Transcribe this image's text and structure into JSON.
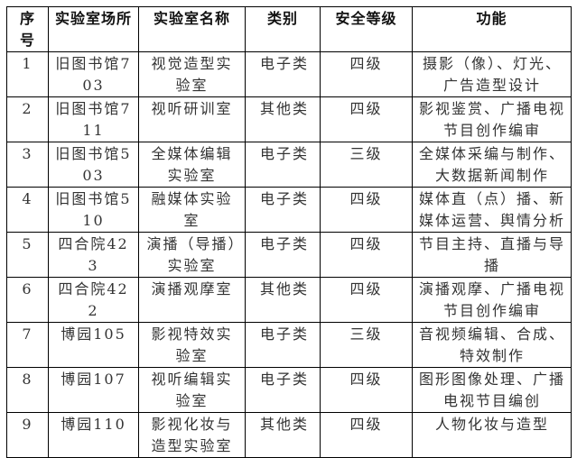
{
  "table": {
    "headers": [
      "序号",
      "实验室场所",
      "实验室名称",
      "类别",
      "安全等级",
      "功能"
    ],
    "rows": [
      [
        "1",
        "旧图书馆703",
        "视觉造型实验室",
        "电子类",
        "四级",
        "摄影（像）、灯光、广告造型设计"
      ],
      [
        "2",
        "旧图书馆711",
        "视听研训室",
        "其他类",
        "四级",
        "影视鉴赏、广播电视节目创作编审"
      ],
      [
        "3",
        "旧图书馆503",
        "全媒体编辑实验室",
        "电子类",
        "三级",
        "全媒体采编与制作、大数据新闻制作"
      ],
      [
        "4",
        "旧图书馆510",
        "融媒体实验室",
        "电子类",
        "四级",
        "媒体直（点）播、新媒体运营、舆情分析"
      ],
      [
        "5",
        "四合院423",
        "演播（导播）实验室",
        "电子类",
        "四级",
        "节目主持、直播与导播"
      ],
      [
        "6",
        "四合院422",
        "演播观摩室",
        "其他类",
        "四级",
        "演播观摩、广播电视节目创作编审"
      ],
      [
        "7",
        "博园105",
        "影视特效实验室",
        "电子类",
        "三级",
        "音视频编辑、合成、特效制作"
      ],
      [
        "8",
        "博园107",
        "视听编辑实验室",
        "电子类",
        "四级",
        "图形图像处理、广播电视节目编创"
      ],
      [
        "9",
        "博园110",
        "影视化妆与造型实验室",
        "其他类",
        "四级",
        "人物化妆与造型"
      ]
    ]
  }
}
